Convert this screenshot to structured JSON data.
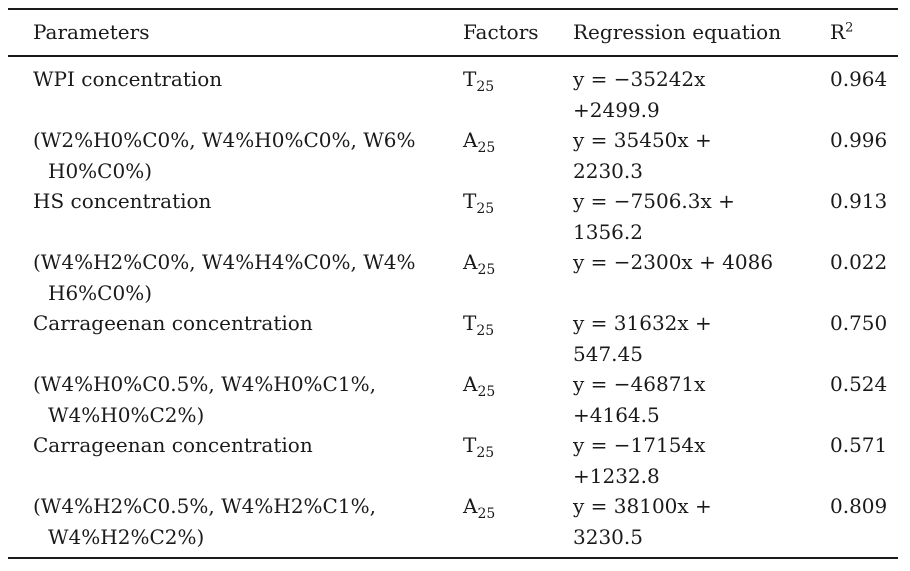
{
  "table": {
    "headers": {
      "parameters": "Parameters",
      "factors": "Factors",
      "regression": "Regression equation",
      "r2_base": "R",
      "r2_sup": "2"
    },
    "rows": [
      {
        "param_line1": "WPI concentration",
        "param_line2": "",
        "factor_base": "T",
        "factor_sub": "25",
        "eq_line1": "y = −35242x",
        "eq_line2": "+2499.9",
        "r2": "0.964"
      },
      {
        "param_line1": "(W2%H0%C0%, W4%H0%C0%, W6%",
        "param_line2": "H0%C0%)",
        "factor_base": "A",
        "factor_sub": "25",
        "eq_line1": "y = 35450x +",
        "eq_line2": "2230.3",
        "r2": "0.996"
      },
      {
        "param_line1": "HS concentration",
        "param_line2": "",
        "factor_base": "T",
        "factor_sub": "25",
        "eq_line1": "y = −7506.3x +",
        "eq_line2": "1356.2",
        "r2": "0.913"
      },
      {
        "param_line1": "(W4%H2%C0%, W4%H4%C0%, W4%",
        "param_line2": "H6%C0%)",
        "factor_base": "A",
        "factor_sub": "25",
        "eq_line1": "y = −2300x + 4086",
        "eq_line2": "",
        "r2": "0.022"
      },
      {
        "param_line1": "Carrageenan concentration",
        "param_line2": "",
        "factor_base": "T",
        "factor_sub": "25",
        "eq_line1": "y = 31632x +",
        "eq_line2": "547.45",
        "r2": "0.750"
      },
      {
        "param_line1": "(W4%H0%C0.5%, W4%H0%C1%,",
        "param_line2": "W4%H0%C2%)",
        "factor_base": "A",
        "factor_sub": "25",
        "eq_line1": "y = −46871x",
        "eq_line2": "+4164.5",
        "r2": "0.524"
      },
      {
        "param_line1": "Carrageenan concentration",
        "param_line2": "",
        "factor_base": "T",
        "factor_sub": "25",
        "eq_line1": "y = −17154x",
        "eq_line2": "+1232.8",
        "r2": "0.571"
      },
      {
        "param_line1": "(W4%H2%C0.5%, W4%H2%C1%,",
        "param_line2": "W4%H2%C2%)",
        "factor_base": "A",
        "factor_sub": "25",
        "eq_line1": "y = 38100x +",
        "eq_line2": "3230.5",
        "r2": "0.809"
      }
    ],
    "colors": {
      "text": "#1a1a1a",
      "rule": "#1a1a1a",
      "background": "#ffffff"
    }
  }
}
